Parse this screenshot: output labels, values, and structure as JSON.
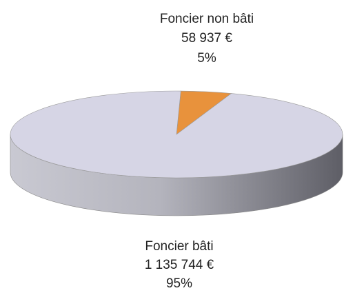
{
  "chart_data": {
    "type": "pie3d",
    "categories": [
      "Foncier non bâti",
      "Foncier bâti"
    ],
    "values": [
      58937,
      1135744
    ],
    "value_labels": [
      "58 937 €",
      "1 135 744 €"
    ],
    "percents": [
      5,
      95
    ],
    "percent_labels": [
      "5%",
      "95%"
    ],
    "colors": [
      "#e8923c",
      "#d6d5e5"
    ]
  }
}
